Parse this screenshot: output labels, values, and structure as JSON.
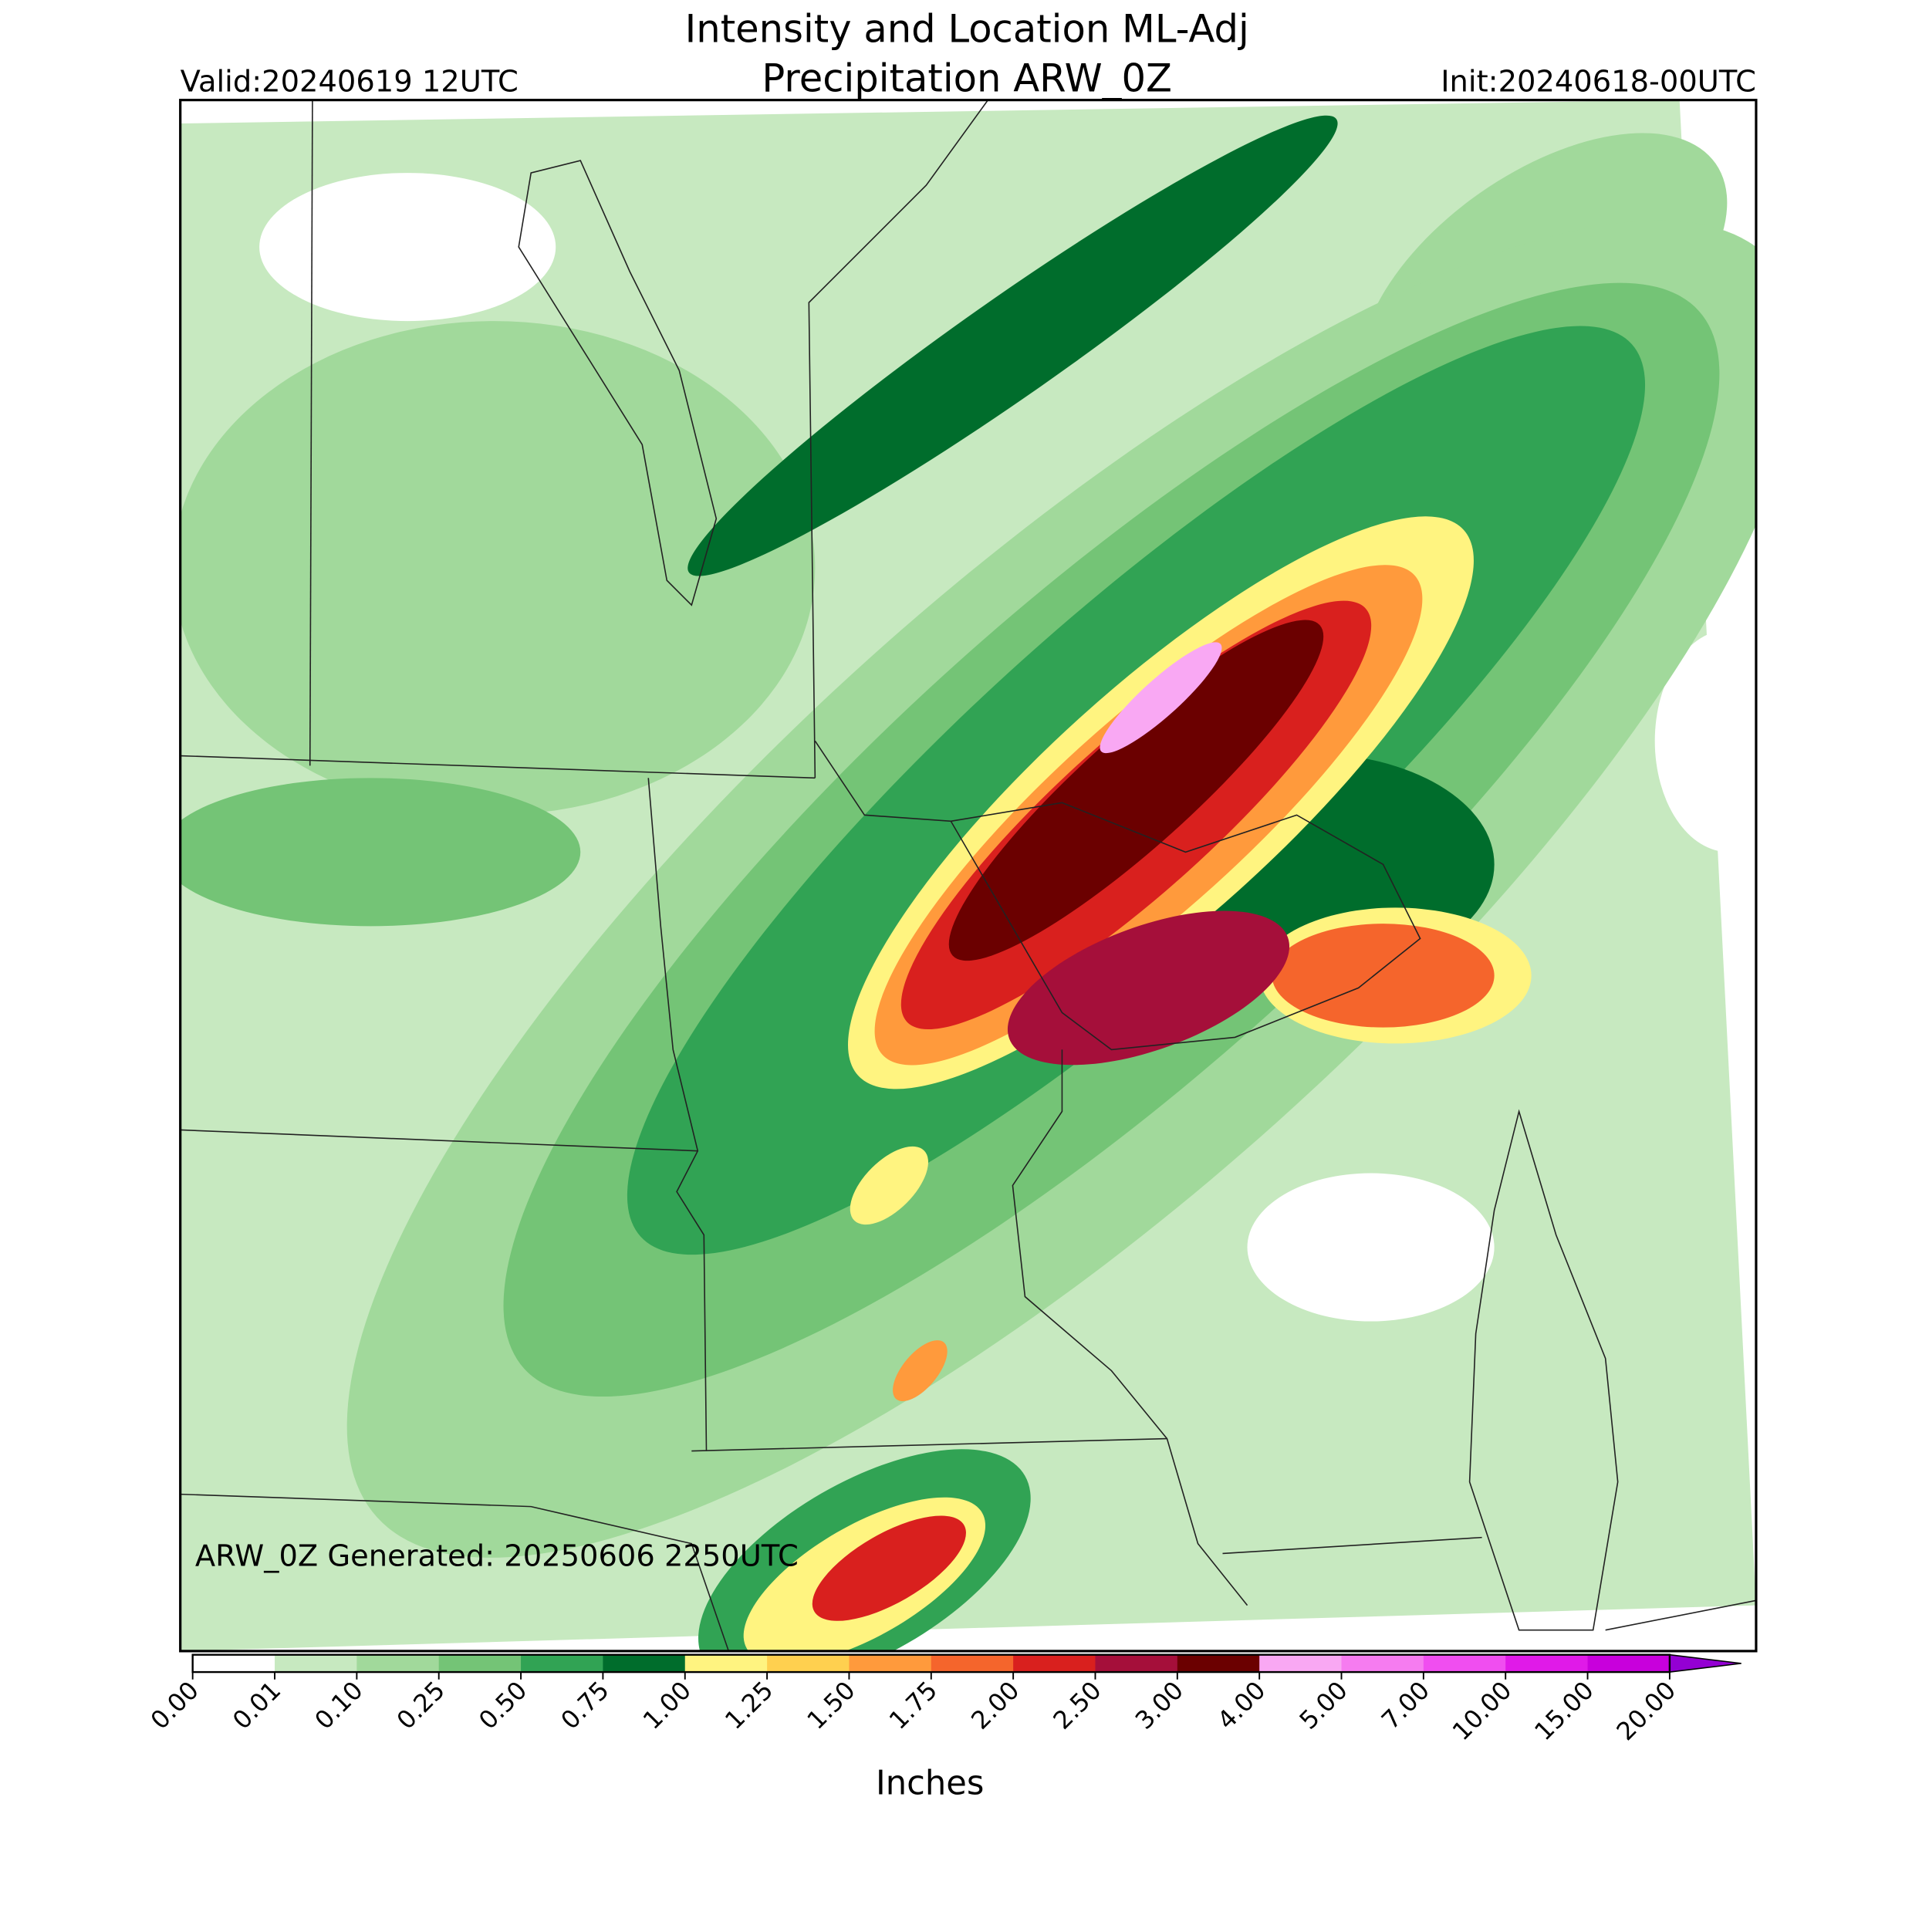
{
  "header": {
    "title_line1": "Intensity and Location ML-Adj",
    "title_line2": "Precipitation ARW_0Z",
    "valid": "Valid:20240619 12UTC",
    "init": "Init:20240618-00UTC"
  },
  "annotation": "ARW_0Z Generated: 20250606 2250UTC",
  "colorbar": {
    "label": "Inches",
    "ticks": [
      {
        "value": 0,
        "label": "0.00"
      },
      {
        "value": 0.01,
        "label": "0.01"
      },
      {
        "value": 0.1,
        "label": "0.10"
      },
      {
        "value": 0.25,
        "label": "0.25"
      },
      {
        "value": 0.5,
        "label": "0.50"
      },
      {
        "value": 0.75,
        "label": "0.75"
      },
      {
        "value": 1,
        "label": "1.00"
      },
      {
        "value": 1.25,
        "label": "1.25"
      },
      {
        "value": 1.5,
        "label": "1.50"
      },
      {
        "value": 1.75,
        "label": "1.75"
      },
      {
        "value": 2,
        "label": "2.00"
      },
      {
        "value": 2.5,
        "label": "2.50"
      },
      {
        "value": 3,
        "label": "3.00"
      },
      {
        "value": 4,
        "label": "4.00"
      },
      {
        "value": 5,
        "label": "5.00"
      },
      {
        "value": 7,
        "label": "7.00"
      },
      {
        "value": 10,
        "label": "10.00"
      },
      {
        "value": 15,
        "label": "15.00"
      },
      {
        "value": 20,
        "label": "20.00"
      }
    ],
    "colors": [
      "#ffffff",
      "#c7e9c0",
      "#a1d99b",
      "#74c476",
      "#31a354",
      "#006d2c",
      "#fff480",
      "#ffd04f",
      "#ff9a3c",
      "#f5652c",
      "#d9201e",
      "#a50f3a",
      "#6b0000",
      "#f9a8f3",
      "#f67cf0",
      "#f04ef0",
      "#e01ae8",
      "#c800dc"
    ],
    "extend_color": "#9400d3"
  }
}
